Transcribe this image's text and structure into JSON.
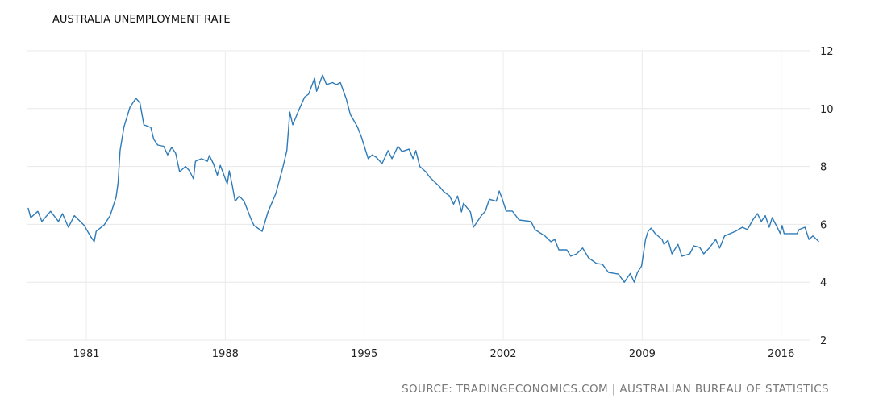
{
  "chart_data": {
    "type": "line",
    "title": "AUSTRALIA UNEMPLOYMENT RATE",
    "source": "SOURCE: TRADINGECONOMICS.COM | AUSTRALIAN BUREAU OF STATISTICS",
    "xlabel": "",
    "ylabel": "",
    "xlim": [
      1978.0,
      2018.0
    ],
    "ylim": [
      2,
      12
    ],
    "x_ticks": [
      1981,
      1988,
      1995,
      2002,
      2009,
      2016
    ],
    "x_tick_labels": [
      "1981",
      "1988",
      "1995",
      "2002",
      "2009",
      "2016"
    ],
    "y_ticks": [
      2,
      4,
      6,
      8,
      10,
      12
    ],
    "y_tick_labels": [
      "2",
      "4",
      "6",
      "8",
      "10",
      "12"
    ],
    "grid": true,
    "line_color": "#2f7bb8",
    "series": [
      {
        "name": "Unemployment Rate",
        "points": [
          [
            1978.07,
            6.57
          ],
          [
            1978.2,
            6.23
          ],
          [
            1978.56,
            6.45
          ],
          [
            1978.76,
            6.1
          ],
          [
            1979.2,
            6.45
          ],
          [
            1979.6,
            6.1
          ],
          [
            1979.8,
            6.37
          ],
          [
            1980.1,
            5.9
          ],
          [
            1980.4,
            6.3
          ],
          [
            1980.9,
            5.96
          ],
          [
            1981.2,
            5.6
          ],
          [
            1981.4,
            5.4
          ],
          [
            1981.5,
            5.76
          ],
          [
            1981.9,
            5.98
          ],
          [
            1982.2,
            6.3
          ],
          [
            1982.5,
            6.93
          ],
          [
            1982.6,
            7.43
          ],
          [
            1982.7,
            8.55
          ],
          [
            1982.9,
            9.38
          ],
          [
            1983.2,
            10.05
          ],
          [
            1983.5,
            10.36
          ],
          [
            1983.7,
            10.2
          ],
          [
            1983.9,
            9.44
          ],
          [
            1984.25,
            9.35
          ],
          [
            1984.4,
            8.94
          ],
          [
            1984.6,
            8.74
          ],
          [
            1984.9,
            8.7
          ],
          [
            1985.1,
            8.4
          ],
          [
            1985.3,
            8.66
          ],
          [
            1985.5,
            8.46
          ],
          [
            1985.7,
            7.82
          ],
          [
            1986.0,
            8.0
          ],
          [
            1986.2,
            7.85
          ],
          [
            1986.4,
            7.57
          ],
          [
            1986.5,
            8.18
          ],
          [
            1986.8,
            8.27
          ],
          [
            1987.1,
            8.18
          ],
          [
            1987.2,
            8.38
          ],
          [
            1987.4,
            8.1
          ],
          [
            1987.6,
            7.7
          ],
          [
            1987.75,
            8.04
          ],
          [
            1988.1,
            7.4
          ],
          [
            1988.2,
            7.85
          ],
          [
            1988.35,
            7.35
          ],
          [
            1988.5,
            6.8
          ],
          [
            1988.7,
            6.98
          ],
          [
            1988.95,
            6.8
          ],
          [
            1989.3,
            6.18
          ],
          [
            1989.45,
            5.96
          ],
          [
            1989.86,
            5.76
          ],
          [
            1990.15,
            6.43
          ],
          [
            1990.55,
            7.07
          ],
          [
            1990.9,
            7.96
          ],
          [
            1991.1,
            8.55
          ],
          [
            1991.25,
            9.88
          ],
          [
            1991.4,
            9.44
          ],
          [
            1991.7,
            9.94
          ],
          [
            1992.0,
            10.4
          ],
          [
            1992.2,
            10.5
          ],
          [
            1992.5,
            11.05
          ],
          [
            1992.6,
            10.6
          ],
          [
            1992.9,
            11.16
          ],
          [
            1993.1,
            10.83
          ],
          [
            1993.4,
            10.9
          ],
          [
            1993.6,
            10.83
          ],
          [
            1993.8,
            10.9
          ],
          [
            1994.1,
            10.33
          ],
          [
            1994.3,
            9.8
          ],
          [
            1994.65,
            9.38
          ],
          [
            1994.86,
            9.02
          ],
          [
            1995.2,
            8.27
          ],
          [
            1995.4,
            8.4
          ],
          [
            1995.6,
            8.32
          ],
          [
            1995.9,
            8.1
          ],
          [
            1996.2,
            8.55
          ],
          [
            1996.4,
            8.27
          ],
          [
            1996.7,
            8.7
          ],
          [
            1996.9,
            8.52
          ],
          [
            1997.26,
            8.6
          ],
          [
            1997.46,
            8.27
          ],
          [
            1997.6,
            8.55
          ],
          [
            1997.8,
            8.0
          ],
          [
            1998.1,
            7.82
          ],
          [
            1998.3,
            7.63
          ],
          [
            1998.8,
            7.3
          ],
          [
            1999.0,
            7.13
          ],
          [
            1999.3,
            6.98
          ],
          [
            1999.5,
            6.7
          ],
          [
            1999.7,
            6.98
          ],
          [
            1999.9,
            6.43
          ],
          [
            2000.0,
            6.73
          ],
          [
            2000.35,
            6.43
          ],
          [
            2000.5,
            5.9
          ],
          [
            2000.9,
            6.3
          ],
          [
            2001.1,
            6.46
          ],
          [
            2001.3,
            6.87
          ],
          [
            2001.65,
            6.8
          ],
          [
            2001.8,
            7.15
          ],
          [
            2001.95,
            6.88
          ],
          [
            2002.15,
            6.46
          ],
          [
            2002.46,
            6.46
          ],
          [
            2002.8,
            6.15
          ],
          [
            2003.4,
            6.1
          ],
          [
            2003.6,
            5.82
          ],
          [
            2004.1,
            5.6
          ],
          [
            2004.4,
            5.4
          ],
          [
            2004.6,
            5.48
          ],
          [
            2004.8,
            5.12
          ],
          [
            2005.2,
            5.12
          ],
          [
            2005.4,
            4.9
          ],
          [
            2005.7,
            4.98
          ],
          [
            2006.0,
            5.18
          ],
          [
            2006.3,
            4.84
          ],
          [
            2006.7,
            4.65
          ],
          [
            2007.0,
            4.62
          ],
          [
            2007.3,
            4.34
          ],
          [
            2007.8,
            4.28
          ],
          [
            2008.1,
            4.0
          ],
          [
            2008.4,
            4.3
          ],
          [
            2008.6,
            4.0
          ],
          [
            2008.76,
            4.34
          ],
          [
            2008.97,
            4.56
          ],
          [
            2009.17,
            5.48
          ],
          [
            2009.3,
            5.76
          ],
          [
            2009.45,
            5.87
          ],
          [
            2009.66,
            5.68
          ],
          [
            2010.0,
            5.48
          ],
          [
            2010.1,
            5.31
          ],
          [
            2010.3,
            5.45
          ],
          [
            2010.5,
            4.98
          ],
          [
            2010.8,
            5.31
          ],
          [
            2011.0,
            4.9
          ],
          [
            2011.4,
            4.98
          ],
          [
            2011.6,
            5.26
          ],
          [
            2011.9,
            5.2
          ],
          [
            2012.1,
            4.98
          ],
          [
            2012.4,
            5.2
          ],
          [
            2012.7,
            5.48
          ],
          [
            2012.9,
            5.18
          ],
          [
            2013.15,
            5.6
          ],
          [
            2013.7,
            5.76
          ],
          [
            2014.05,
            5.9
          ],
          [
            2014.3,
            5.82
          ],
          [
            2014.6,
            6.18
          ],
          [
            2014.8,
            6.37
          ],
          [
            2015.0,
            6.1
          ],
          [
            2015.2,
            6.3
          ],
          [
            2015.4,
            5.9
          ],
          [
            2015.55,
            6.23
          ],
          [
            2015.8,
            5.9
          ],
          [
            2015.96,
            5.68
          ],
          [
            2016.05,
            5.96
          ],
          [
            2016.15,
            5.68
          ],
          [
            2016.8,
            5.68
          ],
          [
            2016.9,
            5.82
          ],
          [
            2017.2,
            5.9
          ],
          [
            2017.4,
            5.48
          ],
          [
            2017.6,
            5.6
          ],
          [
            2017.9,
            5.4
          ]
        ]
      }
    ]
  }
}
